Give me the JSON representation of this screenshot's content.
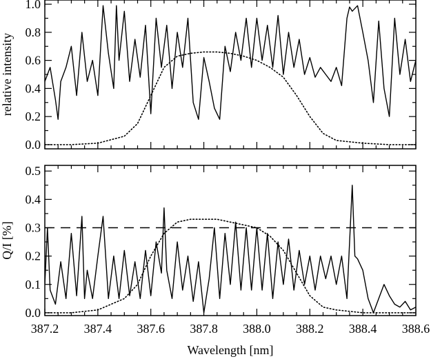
{
  "chart_data": [
    {
      "type": "line",
      "title": "",
      "xlabel": "",
      "ylabel": "relative intensity",
      "xlim": [
        387.2,
        388.6
      ],
      "ylim": [
        -0.03,
        1.03
      ],
      "x_ticks": [
        387.2,
        387.4,
        387.6,
        387.8,
        388.0,
        388.2,
        388.4,
        388.6
      ],
      "x_tick_labels": [
        "",
        "",
        "",
        "",
        "",
        "",
        "",
        ""
      ],
      "y_ticks": [
        0.0,
        0.2,
        0.4,
        0.6,
        0.8,
        1.0
      ],
      "y_tick_labels": [
        "0.0",
        "0.2",
        "0.4",
        "0.6",
        "0.8",
        "1.0"
      ],
      "grid": false,
      "series": [
        {
          "style": "solid",
          "x": [
            387.2,
            387.22,
            387.24,
            387.25,
            387.26,
            387.28,
            387.3,
            387.32,
            387.34,
            387.36,
            387.38,
            387.4,
            387.42,
            387.44,
            387.46,
            387.47,
            387.48,
            387.5,
            387.52,
            387.54,
            387.56,
            387.58,
            387.6,
            387.62,
            387.64,
            387.66,
            387.68,
            387.7,
            387.72,
            387.74,
            387.76,
            387.78,
            387.8,
            387.82,
            387.84,
            387.86,
            387.88,
            387.9,
            387.92,
            387.94,
            387.96,
            387.98,
            388.0,
            388.02,
            388.04,
            388.06,
            388.08,
            388.1,
            388.12,
            388.14,
            388.16,
            388.18,
            388.2,
            388.22,
            388.24,
            388.26,
            388.28,
            388.3,
            388.32,
            388.34,
            388.35,
            388.36,
            388.38,
            388.4,
            388.42,
            388.44,
            388.46,
            388.48,
            388.5,
            388.52,
            388.54,
            388.56,
            388.58,
            388.6
          ],
          "y": [
            0.45,
            0.55,
            0.32,
            0.18,
            0.45,
            0.55,
            0.7,
            0.35,
            0.8,
            0.45,
            0.6,
            0.35,
            0.99,
            0.65,
            0.4,
            0.99,
            0.6,
            0.95,
            0.45,
            0.75,
            0.48,
            0.85,
            0.22,
            0.9,
            0.55,
            0.85,
            0.4,
            0.8,
            0.55,
            0.9,
            0.3,
            0.18,
            0.62,
            0.45,
            0.26,
            0.18,
            0.7,
            0.52,
            0.8,
            0.6,
            0.9,
            0.55,
            0.9,
            0.6,
            0.85,
            0.55,
            0.92,
            0.5,
            0.8,
            0.55,
            0.75,
            0.5,
            0.62,
            0.48,
            0.55,
            0.5,
            0.45,
            0.55,
            0.42,
            0.9,
            0.98,
            0.95,
            0.99,
            0.8,
            0.6,
            0.3,
            0.88,
            0.4,
            0.2,
            0.9,
            0.5,
            0.75,
            0.45,
            0.6
          ]
        },
        {
          "style": "dotted",
          "x": [
            387.2,
            387.3,
            387.4,
            387.5,
            387.55,
            387.6,
            387.65,
            387.7,
            387.75,
            387.8,
            387.85,
            387.9,
            387.95,
            388.0,
            388.05,
            388.1,
            388.15,
            388.2,
            388.25,
            388.3,
            388.4,
            388.5,
            388.6
          ],
          "y": [
            0.0,
            0.0,
            0.01,
            0.06,
            0.15,
            0.35,
            0.55,
            0.63,
            0.65,
            0.66,
            0.66,
            0.65,
            0.63,
            0.6,
            0.55,
            0.48,
            0.35,
            0.2,
            0.08,
            0.03,
            0.01,
            0.0,
            0.0
          ]
        }
      ]
    },
    {
      "type": "line",
      "title": "",
      "xlabel": "Wavelength [nm]",
      "ylabel": "Q/I [%]",
      "xlim": [
        387.2,
        388.6
      ],
      "ylim": [
        -0.01,
        0.52
      ],
      "x_ticks": [
        387.2,
        387.4,
        387.6,
        387.8,
        388.0,
        388.2,
        388.4,
        388.6
      ],
      "x_tick_labels": [
        "387.2",
        "387.4",
        "387.6",
        "387.8",
        "388.0",
        "388.2",
        "388.4",
        "388.6"
      ],
      "y_ticks": [
        0.0,
        0.1,
        0.2,
        0.3,
        0.4,
        0.5
      ],
      "y_tick_labels": [
        "0.0",
        "0.1",
        "0.2",
        "0.3",
        "0.4",
        "0.5"
      ],
      "grid": false,
      "reference_line": {
        "y": 0.3,
        "style": "dashed"
      },
      "series": [
        {
          "style": "solid",
          "x": [
            387.2,
            387.21,
            387.22,
            387.24,
            387.26,
            387.28,
            387.3,
            387.32,
            387.34,
            387.35,
            387.36,
            387.38,
            387.4,
            387.42,
            387.44,
            387.46,
            387.48,
            387.5,
            387.52,
            387.54,
            387.56,
            387.58,
            387.6,
            387.62,
            387.64,
            387.65,
            387.66,
            387.68,
            387.7,
            387.72,
            387.74,
            387.76,
            387.78,
            387.8,
            387.82,
            387.84,
            387.86,
            387.88,
            387.9,
            387.92,
            387.94,
            387.96,
            387.98,
            388.0,
            388.02,
            388.04,
            388.06,
            388.08,
            388.1,
            388.12,
            388.14,
            388.16,
            388.18,
            388.2,
            388.22,
            388.24,
            388.26,
            388.28,
            388.3,
            388.32,
            388.34,
            388.36,
            388.37,
            388.38,
            388.4,
            388.42,
            388.44,
            388.46,
            388.48,
            388.5,
            388.52,
            388.54,
            388.56,
            388.58,
            388.6
          ],
          "y": [
            0.1,
            0.3,
            0.08,
            0.03,
            0.18,
            0.05,
            0.28,
            0.06,
            0.34,
            0.05,
            0.15,
            0.05,
            0.2,
            0.34,
            0.05,
            0.2,
            0.05,
            0.22,
            0.06,
            0.18,
            0.05,
            0.22,
            0.06,
            0.25,
            0.14,
            0.37,
            0.15,
            0.05,
            0.25,
            0.08,
            0.2,
            0.04,
            0.18,
            0.0,
            0.12,
            0.3,
            0.05,
            0.28,
            0.1,
            0.32,
            0.08,
            0.3,
            0.08,
            0.3,
            0.08,
            0.28,
            0.05,
            0.25,
            0.1,
            0.26,
            0.08,
            0.22,
            0.1,
            0.2,
            0.08,
            0.2,
            0.12,
            0.2,
            0.1,
            0.2,
            0.05,
            0.45,
            0.2,
            0.19,
            0.15,
            0.05,
            0.0,
            0.05,
            0.1,
            0.06,
            0.03,
            0.02,
            0.04,
            0.01,
            0.02
          ]
        },
        {
          "style": "dotted",
          "x": [
            387.2,
            387.3,
            387.4,
            387.5,
            387.55,
            387.6,
            387.65,
            387.7,
            387.75,
            387.8,
            387.85,
            387.9,
            387.95,
            388.0,
            388.05,
            388.1,
            388.15,
            388.2,
            388.25,
            388.3,
            388.4,
            388.5,
            388.6
          ],
          "y": [
            0.0,
            0.0,
            0.01,
            0.05,
            0.1,
            0.2,
            0.28,
            0.32,
            0.33,
            0.33,
            0.33,
            0.32,
            0.31,
            0.3,
            0.27,
            0.22,
            0.14,
            0.06,
            0.02,
            0.01,
            0.0,
            0.0,
            0.0
          ]
        }
      ]
    }
  ]
}
